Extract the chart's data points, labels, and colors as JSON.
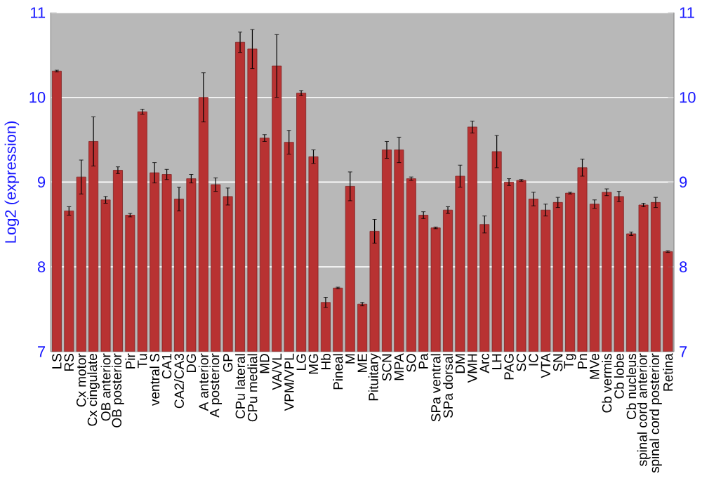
{
  "chart_data": {
    "type": "bar",
    "ylabel": "Log2 (expression)",
    "color": "#b83232",
    "grid": "y",
    "categories": [
      "LS",
      "RS",
      "Cx motor",
      "Cx cingulate",
      "OB anterior",
      "OB posterior",
      "Pir",
      "Tu",
      "ventral S",
      "CA1",
      "CA2/CA3",
      "DG",
      "A anterior",
      "A posterior",
      "GP",
      "CPu lateral",
      "CPu medial",
      "MD",
      "VA/VL",
      "VPM/VPL",
      "LG",
      "MG",
      "Hb",
      "Pineal",
      "M",
      "ME",
      "Pituitary",
      "SCN",
      "MPA",
      "SO",
      "Pa",
      "SPa ventral",
      "SPa dorsal",
      "DM",
      "VMH",
      "Arc",
      "LH",
      "PAG",
      "SC",
      "IC",
      "VTA",
      "SN",
      "Tg",
      "Pn",
      "MVe",
      "Cb vermis",
      "Cb lobe",
      "Cb nucleus",
      "spinal cord anterior",
      "spinal cord posterior",
      "Retina"
    ],
    "values": [
      10.31,
      8.66,
      9.06,
      9.48,
      8.79,
      9.14,
      8.61,
      9.83,
      9.11,
      9.09,
      8.8,
      9.04,
      10.0,
      8.97,
      8.83,
      10.65,
      10.57,
      9.52,
      10.37,
      9.47,
      10.05,
      9.3,
      7.58,
      7.75,
      8.95,
      7.56,
      8.42,
      9.38,
      9.38,
      9.04,
      8.61,
      8.46,
      8.67,
      9.07,
      9.65,
      8.5,
      9.36,
      9.0,
      9.02,
      8.8,
      8.67,
      8.76,
      8.87,
      9.17,
      8.74,
      8.88,
      8.83,
      8.39,
      8.73,
      8.76,
      8.18
    ],
    "errors": [
      0.01,
      0.05,
      0.2,
      0.29,
      0.04,
      0.04,
      0.02,
      0.03,
      0.12,
      0.06,
      0.14,
      0.05,
      0.29,
      0.08,
      0.1,
      0.12,
      0.23,
      0.04,
      0.37,
      0.14,
      0.03,
      0.08,
      0.06,
      0.01,
      0.17,
      0.02,
      0.14,
      0.1,
      0.15,
      0.02,
      0.04,
      0.01,
      0.04,
      0.13,
      0.07,
      0.1,
      0.19,
      0.04,
      0.01,
      0.08,
      0.07,
      0.06,
      0.01,
      0.1,
      0.05,
      0.04,
      0.06,
      0.02,
      0.02,
      0.06,
      0.01
    ],
    "ylim": [
      7,
      11
    ],
    "yticks": [
      7,
      8,
      9,
      10,
      11
    ],
    "y2lim": [
      7,
      11
    ],
    "y2ticks": [
      7,
      8,
      9,
      10,
      11
    ]
  }
}
